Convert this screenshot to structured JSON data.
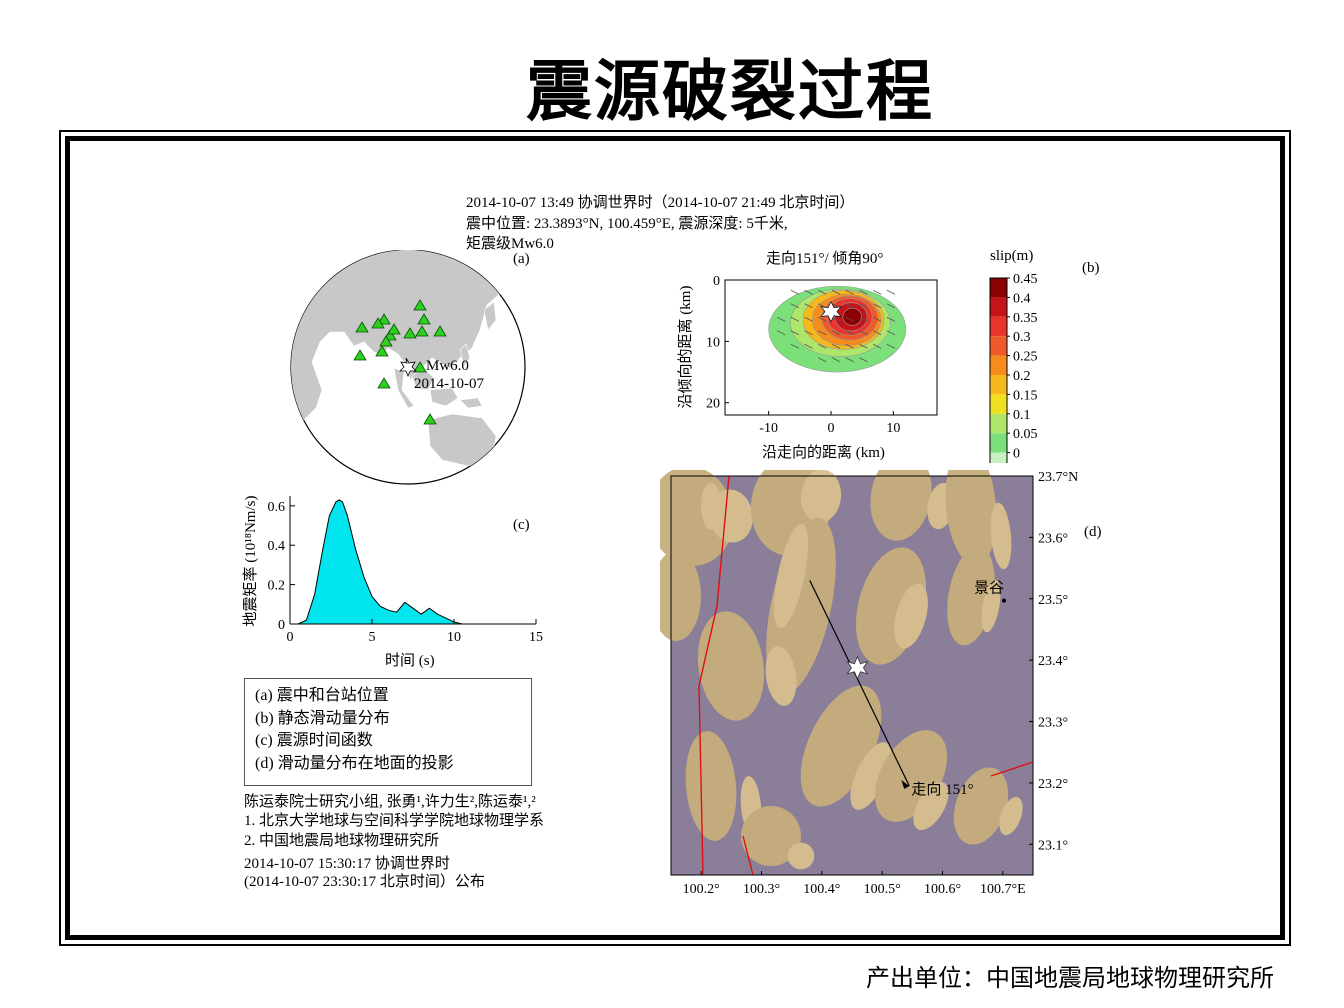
{
  "title": "震源破裂过程",
  "footer": "产出单位：中国地震局地球物理研究所",
  "event": {
    "time": "2014-10-07 13:49 协调世界时（2014-10-07 21:49 北京时间）",
    "location": "震中位置: 23.3893°N, 100.459°E, 震源深度: 5千米,",
    "magnitude": "矩震级Mw6.0"
  },
  "panel_a": {
    "label": "(a)",
    "event_label": "Mw6.0",
    "event_date": "2014-10-07"
  },
  "panel_b": {
    "label": "(b)",
    "title": "走向151°/ 倾角90°",
    "ylabel": "沿倾向的距离 (km)",
    "xlabel": "沿走向的距离 (km)",
    "colorbar_title": "slip(m)"
  },
  "panel_c": {
    "label": "(c)",
    "ylabel": "地震矩率 (10¹⁸Nm/s)",
    "xlabel": "时间 (s)"
  },
  "panel_d": {
    "label": "(d)",
    "town": "景谷",
    "strike_label": "走向 151°"
  },
  "legend": [
    "(a) 震中和台站位置",
    "(b) 静态滑动量分布",
    "(c) 震源时间函数",
    "(d) 滑动量分布在地面的投影"
  ],
  "credits": {
    "group": "陈运泰院士研究小组, 张勇¹,许力生²,陈运泰¹,²",
    "affil1": "1. 北京大学地球与空间科学学院地球物理学系",
    "affil2": "2. 中国地震局地球物理研究所",
    "published1": "2014-10-07 15:30:17 协调世界时",
    "published2": "(2014-10-07 23:30:17 北京时间）公布"
  },
  "chart_data": [
    {
      "type": "area",
      "title": "",
      "xlabel": "时间 (s)",
      "ylabel": "地震矩率 (10¹⁸Nm/s)",
      "xlim": [
        0,
        15
      ],
      "ylim": [
        0,
        0.65
      ],
      "xticks": [
        "0",
        "5",
        "10",
        "15"
      ],
      "yticks": [
        "0",
        "0.2",
        "0.4",
        "0.6"
      ],
      "x": [
        0,
        0.5,
        1.0,
        1.5,
        2.0,
        2.4,
        2.8,
        3.0,
        3.2,
        3.5,
        4.0,
        4.5,
        5.0,
        5.5,
        6.0,
        6.5,
        7.0,
        7.5,
        8.0,
        8.5,
        9.0,
        9.5,
        10.0,
        10.5
      ],
      "y": [
        0,
        0,
        0.02,
        0.15,
        0.38,
        0.55,
        0.62,
        0.63,
        0.62,
        0.55,
        0.38,
        0.24,
        0.14,
        0.09,
        0.07,
        0.06,
        0.11,
        0.08,
        0.05,
        0.08,
        0.05,
        0.03,
        0.01,
        0
      ],
      "fill_color": "#00e5ee"
    },
    {
      "type": "heatmap",
      "title": "走向151°/ 倾角90°",
      "xlabel": "沿走向的距离 (km)",
      "ylabel": "沿倾向的距离 (km)",
      "xlim": [
        -17,
        17
      ],
      "ylim": [
        0,
        22
      ],
      "xticks": [
        "-10",
        "0",
        "10"
      ],
      "yticks": [
        "0",
        "10",
        "20"
      ],
      "colorbar": {
        "label": "slip(m)",
        "ticks": [
          "0.45",
          "0.4",
          "0.35",
          "0.3",
          "0.25",
          "0.2",
          "0.15",
          "0.1",
          "0.05",
          "0"
        ],
        "colors": [
          "#8b0000",
          "#c4141a",
          "#e8342a",
          "#ef5a2a",
          "#f58c1c",
          "#f7b81c",
          "#f0e020",
          "#aee66a",
          "#7be07a",
          "#c8f0c0"
        ]
      },
      "peak_slip": 0.45,
      "hypocenter": {
        "strike_km": 0,
        "dip_km": 5
      }
    },
    {
      "type": "scatter",
      "title": "",
      "xlim": [
        100.15,
        100.75
      ],
      "ylim": [
        23.05,
        23.7
      ],
      "xticks": [
        "100.2°",
        "100.3°",
        "100.4°",
        "100.5°",
        "100.6°",
        "100.7°E"
      ],
      "yticks": [
        "23.7°N",
        "23.6°",
        "23.5°",
        "23.4°",
        "23.3°",
        "23.2°",
        "23.1°"
      ],
      "epicenter": {
        "lon": 100.459,
        "lat": 23.3893
      },
      "town": {
        "name": "景谷",
        "lon": 100.702,
        "lat": 23.497
      },
      "strike_line": [
        [
          100.38,
          23.53
        ],
        [
          100.545,
          23.195
        ]
      ]
    }
  ],
  "colors": {
    "terrain": "#8a7e98",
    "ridge": "#c7ae7c",
    "stations": "#2cd11e",
    "moment_fill": "#00e5ee"
  }
}
